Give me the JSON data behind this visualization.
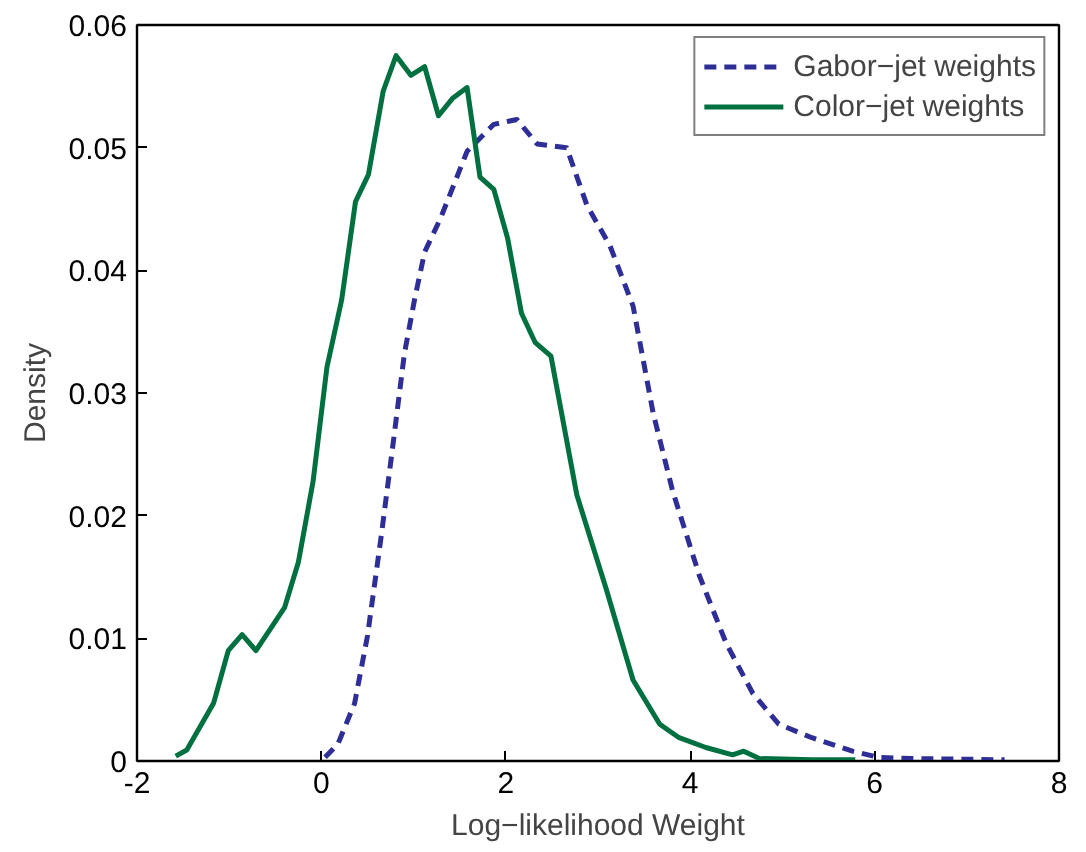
{
  "chart_data": {
    "type": "line",
    "xlabel": "Log−likelihood Weight",
    "ylabel": "Density",
    "xlim": [
      -2,
      8
    ],
    "ylim": [
      0,
      0.06
    ],
    "xticks": [
      -2,
      0,
      2,
      4,
      6,
      8
    ],
    "yticks": [
      0,
      0.01,
      0.02,
      0.03,
      0.04,
      0.05,
      0.06
    ],
    "grid": false,
    "legend": "top right",
    "marker": "none",
    "series": [
      {
        "name": "Gabor−jet weights",
        "color": "#2e2e96",
        "line_style": "dashed",
        "x": [
          0.04,
          0.18,
          0.36,
          0.5,
          0.65,
          0.79,
          0.9,
          1.01,
          1.12,
          1.29,
          1.58,
          1.87,
          2.12,
          2.34,
          2.66,
          2.88,
          3.13,
          3.38,
          3.6,
          3.81,
          4.1,
          4.39,
          4.68,
          4.96,
          5.32,
          5.76,
          6.04,
          6.4,
          7.41
        ],
        "values": [
          0.0003,
          0.0014,
          0.0047,
          0.0102,
          0.0184,
          0.0266,
          0.0332,
          0.0376,
          0.0415,
          0.0442,
          0.0497,
          0.0519,
          0.0523,
          0.0503,
          0.05,
          0.0453,
          0.042,
          0.0371,
          0.0283,
          0.022,
          0.0151,
          0.0096,
          0.0055,
          0.003,
          0.0019,
          0.0008,
          0.0003,
          0.0002,
          0.0001
        ]
      },
      {
        "name": "Color−jet weights",
        "color": "#007040",
        "line_style": "solid",
        "x": [
          -1.58,
          -1.46,
          -1.17,
          -1.01,
          -0.86,
          -0.71,
          -0.4,
          -0.25,
          -0.09,
          0.06,
          0.22,
          0.37,
          0.51,
          0.67,
          0.81,
          0.97,
          1.12,
          1.27,
          1.42,
          1.58,
          1.72,
          1.87,
          2.02,
          2.17,
          2.32,
          2.49,
          2.77,
          3.09,
          3.38,
          3.67,
          3.88,
          4.17,
          4.46,
          4.58,
          4.75,
          5.32,
          5.79
        ],
        "values": [
          0.0004,
          0.0009,
          0.0047,
          0.009,
          0.0103,
          0.009,
          0.0125,
          0.0162,
          0.0228,
          0.0321,
          0.0376,
          0.0456,
          0.0478,
          0.0546,
          0.0575,
          0.0559,
          0.0566,
          0.0526,
          0.054,
          0.0549,
          0.0476,
          0.0466,
          0.0426,
          0.0365,
          0.0341,
          0.033,
          0.0217,
          0.014,
          0.0066,
          0.003,
          0.0019,
          0.0011,
          0.0005,
          0.0008,
          0.0002,
          0.0001,
          0.0001
        ]
      }
    ]
  }
}
